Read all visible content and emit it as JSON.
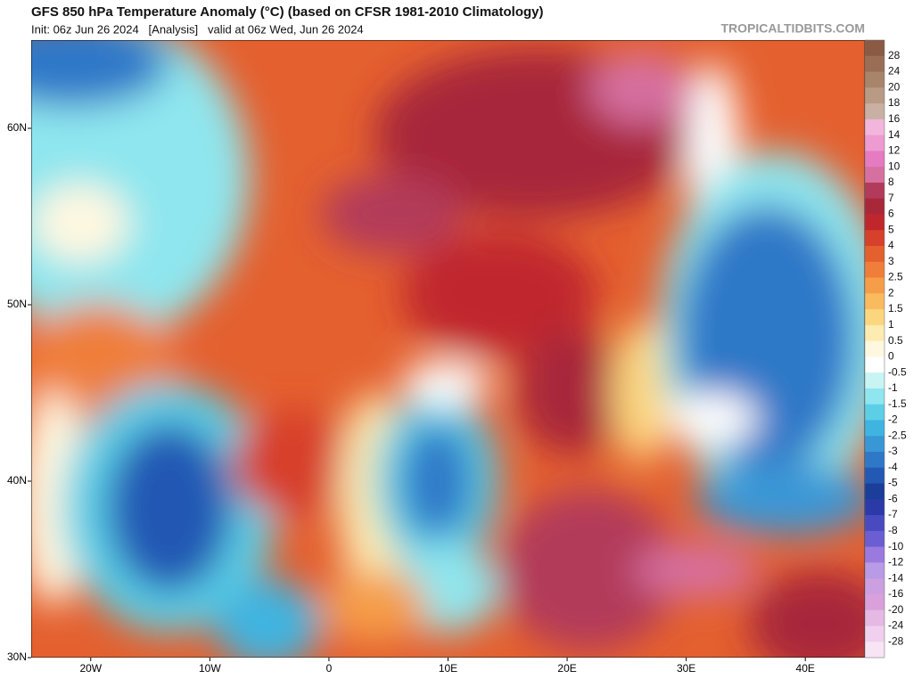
{
  "header": {
    "title": "GFS 850 hPa Temperature Anomaly (°C) (based on CFSR 1981-2010 Climatology)",
    "subtitle": "Init: 06z Jun 26 2024   [Analysis]   valid at 06z Wed, Jun 26 2024",
    "watermark": "TROPICALTIDBITS.COM"
  },
  "map": {
    "xlim": [
      -25,
      45
    ],
    "ylim": [
      30,
      65
    ],
    "xticks": [
      {
        "value": -20,
        "label": "20W"
      },
      {
        "value": -10,
        "label": "10W"
      },
      0,
      {
        "value": 10,
        "label": "10E"
      },
      {
        "value": 20,
        "label": "20E"
      },
      {
        "value": 30,
        "label": "30E"
      },
      {
        "value": 40,
        "label": "40E"
      }
    ],
    "yticks": [
      {
        "value": 60,
        "label": "60N"
      },
      {
        "value": 50,
        "label": "50N"
      },
      {
        "value": 40,
        "label": "40N"
      },
      {
        "value": 30,
        "label": "30N"
      }
    ]
  },
  "colorbar": {
    "levels": [
      28,
      24,
      20,
      18,
      16,
      14,
      12,
      10,
      8,
      7,
      6,
      5,
      4,
      3,
      2.5,
      2,
      1.5,
      1,
      0.5,
      0,
      -0.5,
      -1,
      -1.5,
      -2,
      -2.5,
      -3,
      -4,
      -5,
      -6,
      -7,
      -8,
      -10,
      -12,
      -14,
      -16,
      -20,
      -24,
      -28
    ],
    "colors": [
      "#8b5a45",
      "#9a6e55",
      "#a8846b",
      "#b89a85",
      "#c9b0a3",
      "#f2b6dc",
      "#ee9bd2",
      "#e57bc0",
      "#d670a0",
      "#b23a5a",
      "#a8283a",
      "#c0272d",
      "#d7402a",
      "#e4602f",
      "#ef7e3a",
      "#f59d48",
      "#f9bb5e",
      "#fcd67f",
      "#fdebb0",
      "#fff8e0",
      "#ffffff",
      "#c8f4f4",
      "#8fe6ee",
      "#5ccfe6",
      "#3fb4e0",
      "#3a97d6",
      "#2f78c8",
      "#2359b4",
      "#1a3e9a",
      "#2c3aa8",
      "#4a4ac0",
      "#6a5ed2",
      "#9b7ae0",
      "#b89ae6",
      "#cc9fe0",
      "#d9a0dc",
      "#e6b8e4",
      "#f0d0ee",
      "#f7e4f4"
    ]
  }
}
